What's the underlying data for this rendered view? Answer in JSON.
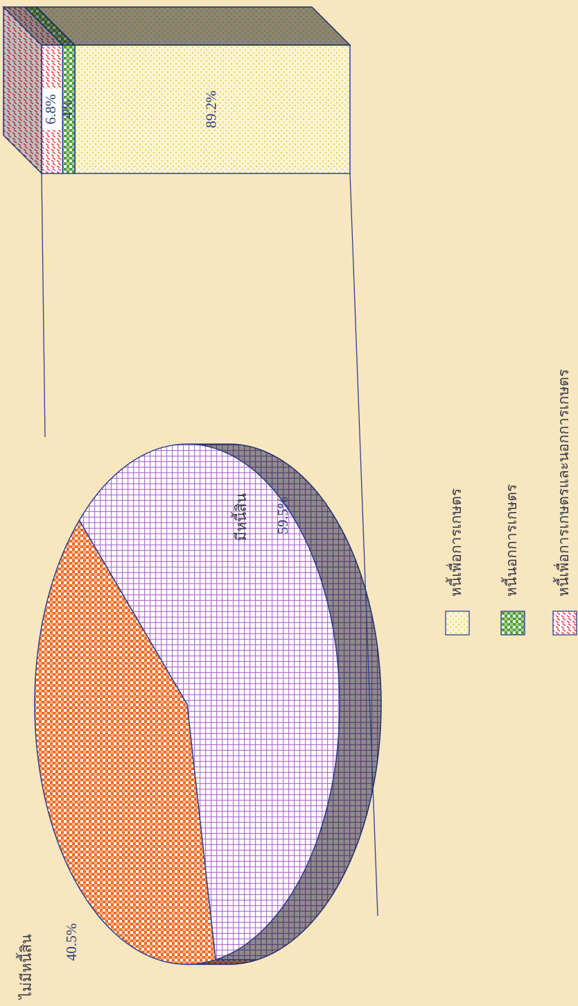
{
  "chart_data": {
    "type": "pie-of-bar",
    "pie": {
      "categories": [
        "ไม่มีหนี้สิน",
        "มีหนี้สิน"
      ],
      "values": [
        40.5,
        59.5
      ],
      "value_labels": [
        "40.5%",
        "59.5%"
      ],
      "colors": [
        "#f06a22",
        "#b070d0"
      ]
    },
    "bar": {
      "categories": [
        "หนี้เพื่อการเกษตร",
        "หนี้นอกการเกษตร",
        "หนี้เพื่อการเกษตรและนอกการเกษตร"
      ],
      "values": [
        89.2,
        4,
        6.8
      ],
      "value_labels": [
        "89.2%",
        "4%",
        "6.8%"
      ],
      "colors": [
        "#f0d860",
        "#4ea030",
        "#f04050"
      ]
    }
  }
}
